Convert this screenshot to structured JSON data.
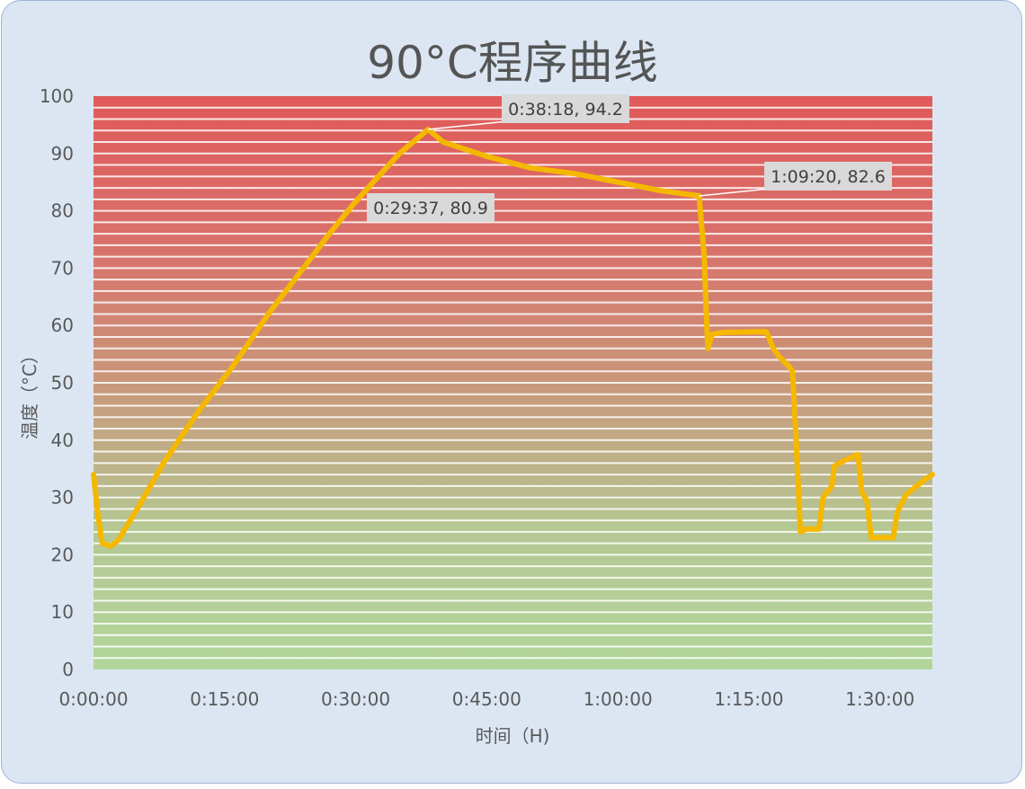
{
  "chart_data": {
    "type": "line",
    "title": "90°C程序曲线",
    "xlabel": "时间（H)",
    "ylabel": "温度（°C）",
    "ylim": [
      0,
      100
    ],
    "yticks": [
      0,
      10,
      20,
      30,
      40,
      50,
      60,
      70,
      80,
      90,
      100
    ],
    "xlim_minutes": [
      0,
      96
    ],
    "xticks": [
      {
        "label": "0:00:00",
        "minutes": 0
      },
      {
        "label": "0:15:00",
        "minutes": 15
      },
      {
        "label": "0:30:00",
        "minutes": 30
      },
      {
        "label": "0:45:00",
        "minutes": 45
      },
      {
        "label": "1:00:00",
        "minutes": 60
      },
      {
        "label": "1:15:00",
        "minutes": 75
      },
      {
        "label": "1:30:00",
        "minutes": 90
      }
    ],
    "background_gradient": [
      "#e05a5a",
      "#d9706a",
      "#c9977a",
      "#b5c793",
      "#b2d69a"
    ],
    "line_color": "#f5b800",
    "series": [
      {
        "points": [
          [
            0,
            34
          ],
          [
            0.5,
            27
          ],
          [
            1,
            22
          ],
          [
            2,
            21.5
          ],
          [
            2.8,
            22.5
          ],
          [
            5,
            28
          ],
          [
            8,
            36
          ],
          [
            12,
            45
          ],
          [
            16,
            53
          ],
          [
            20,
            62
          ],
          [
            24,
            70
          ],
          [
            27,
            76
          ],
          [
            29.6,
            80.9
          ],
          [
            32,
            85
          ],
          [
            35,
            90
          ],
          [
            38.3,
            94.2
          ],
          [
            40,
            92
          ],
          [
            45,
            89.5
          ],
          [
            50,
            87.5
          ],
          [
            55,
            86.5
          ],
          [
            60,
            85
          ],
          [
            65,
            83.5
          ],
          [
            69.3,
            82.6
          ],
          [
            69.9,
            72
          ],
          [
            70.1,
            63
          ],
          [
            70.3,
            56
          ],
          [
            70.8,
            58.5
          ],
          [
            72,
            58.8
          ],
          [
            76,
            58.9
          ],
          [
            77,
            58.9
          ],
          [
            77.8,
            56
          ],
          [
            78.5,
            54.5
          ],
          [
            79.5,
            53
          ],
          [
            80,
            52
          ],
          [
            80.5,
            37
          ],
          [
            80.9,
            24
          ],
          [
            81.5,
            24.5
          ],
          [
            83,
            24.5
          ],
          [
            83.5,
            30
          ],
          [
            84.5,
            32
          ],
          [
            84.8,
            35.5
          ],
          [
            86,
            36.5
          ],
          [
            87.5,
            37.5
          ],
          [
            87.9,
            31
          ],
          [
            88.5,
            29.5
          ],
          [
            89,
            23
          ],
          [
            91.5,
            23
          ],
          [
            92,
            27.5
          ],
          [
            93,
            30.5
          ],
          [
            95,
            33
          ],
          [
            96,
            34
          ]
        ]
      }
    ],
    "annotations": [
      {
        "text": "0:38:18, 94.2",
        "x": 38.3,
        "y": 94.2
      },
      {
        "text": "0:29:37, 80.9",
        "x": 29.6,
        "y": 80.9
      },
      {
        "text": "1:09:20, 82.6",
        "x": 69.3,
        "y": 82.6
      }
    ]
  }
}
